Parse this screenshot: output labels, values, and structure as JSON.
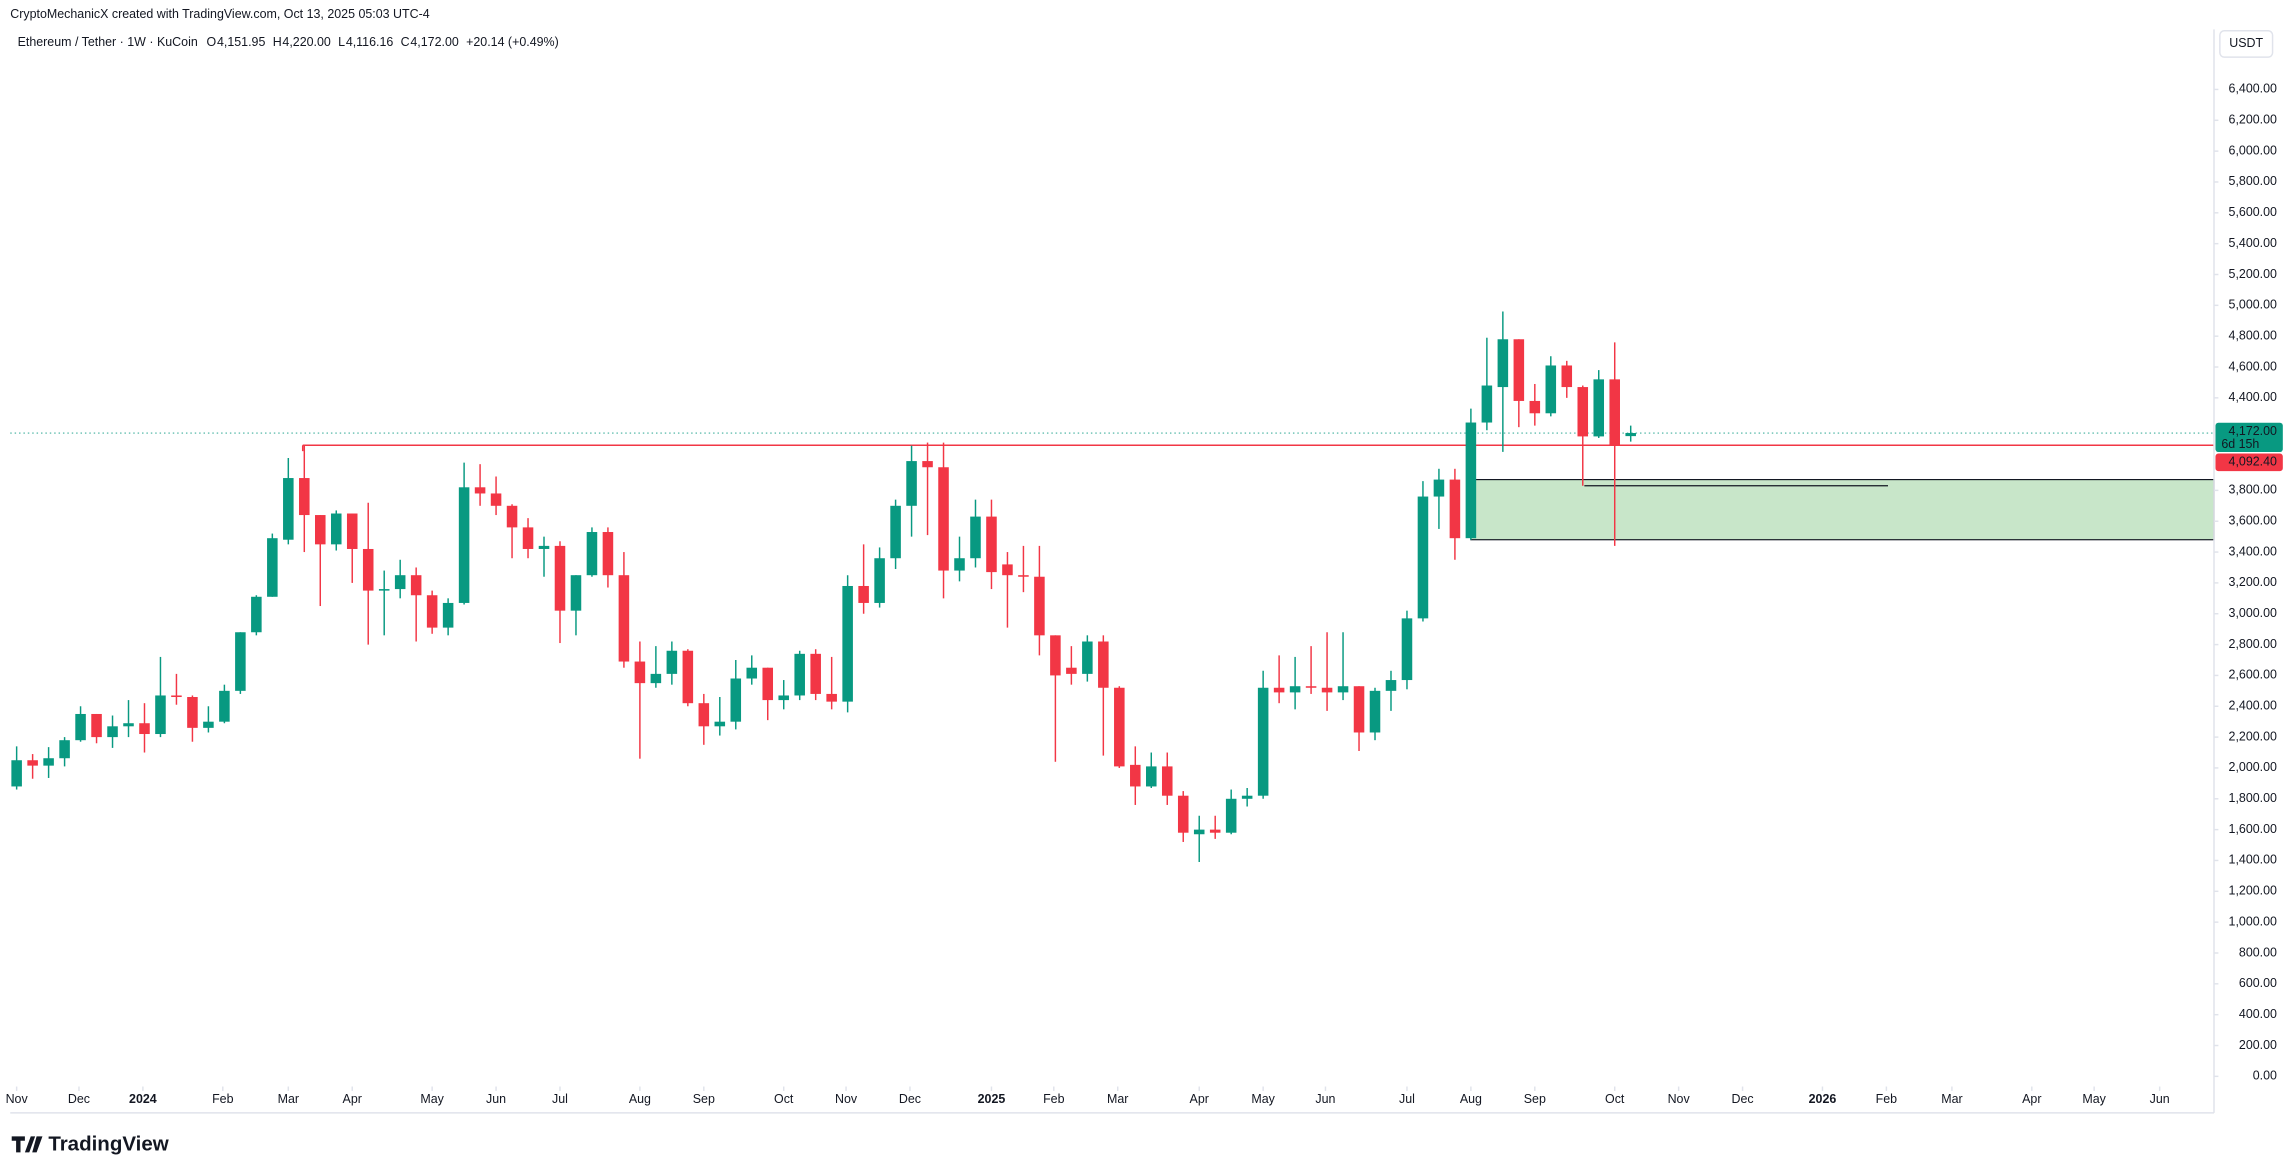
{
  "chart_data": {
    "type": "candlestick",
    "attribution": "CryptoMechanicX created with TradingView.com, Oct 13, 2025 05:03 UTC-4",
    "title": "Ethereum / Tether · 1W · KuCoin",
    "ohlc_legend": [
      {
        "name": "O",
        "value": 4151.95,
        "label": "4,151.95"
      },
      {
        "name": "H",
        "value": 4220,
        "label": "4,220.00"
      },
      {
        "name": "L",
        "value": 4116.16,
        "label": "4,116.16"
      },
      {
        "name": "C",
        "value": 4172,
        "label": "4,172.00"
      }
    ],
    "change": {
      "value": 20.14,
      "percent": 0.49,
      "label": "+20.14 (+0.49%)"
    },
    "currency": "USDT",
    "brand": "TradingView",
    "up_color": "#089981",
    "down_color": "#f23645",
    "open": [
      1880,
      2050,
      2015,
      2063,
      2180,
      2350,
      2200,
      2270,
      2290,
      2220,
      2470,
      2460,
      2260,
      2300,
      2500,
      2880,
      3110,
      3480,
      3880,
      3640,
      3450,
      3650,
      3420,
      3150,
      3160,
      3250,
      3120,
      2910,
      3070,
      3820,
      3780,
      3700,
      3560,
      3420,
      3440,
      3020,
      3250,
      3530,
      3250,
      2690,
      2550,
      2610,
      2760,
      2420,
      2270,
      2300,
      2580,
      2650,
      2440,
      2470,
      2740,
      2480,
      2430,
      3180,
      3070,
      3360,
      3700,
      3990,
      3950,
      3280,
      3360,
      3630,
      3320,
      3250,
      3240,
      2860,
      2650,
      2610,
      2820,
      2520,
      2020,
      1880,
      2010,
      1820,
      1570,
      1600,
      1580,
      1800,
      1820,
      2520,
      2490,
      2530,
      2520,
      2490,
      2530,
      2230,
      2500,
      2570,
      2970,
      3760,
      3870,
      3490,
      4240,
      4470,
      4780,
      4380,
      4300,
      4610,
      4470,
      4150,
      4520,
      4151.95
    ],
    "high": [
      2140,
      2090,
      2135,
      2200,
      2400,
      2350,
      2340,
      2440,
      2420,
      2720,
      2610,
      2470,
      2400,
      2540,
      2880,
      3120,
      3520,
      4010,
      4090,
      3640,
      3670,
      3650,
      3720,
      3280,
      3350,
      3300,
      3150,
      3100,
      3980,
      3970,
      3890,
      3710,
      3620,
      3500,
      3470,
      3250,
      3560,
      3560,
      3400,
      2820,
      2790,
      2820,
      2770,
      2480,
      2460,
      2700,
      2730,
      2650,
      2570,
      2760,
      2770,
      2720,
      3250,
      3450,
      3430,
      3740,
      4090,
      4110,
      4110,
      3500,
      3740,
      3740,
      3400,
      3440,
      3440,
      2860,
      2790,
      2860,
      2860,
      2530,
      2140,
      2100,
      2100,
      1850,
      1690,
      1690,
      1860,
      1870,
      2630,
      2730,
      2720,
      2790,
      2880,
      2880,
      2530,
      2520,
      2630,
      3020,
      3860,
      3940,
      3940,
      4330,
      4790,
      4960,
      4780,
      4490,
      4670,
      4640,
      4480,
      4580,
      4760,
      4220
    ],
    "low": [
      1860,
      1930,
      1935,
      2010,
      2170,
      2160,
      2130,
      2200,
      2100,
      2200,
      2410,
      2170,
      2230,
      2290,
      2480,
      2860,
      3110,
      3450,
      3400,
      3050,
      3410,
      3200,
      2800,
      2860,
      3100,
      2820,
      2870,
      2860,
      3060,
      3700,
      3640,
      3360,
      3360,
      3240,
      2810,
      2860,
      3240,
      3170,
      2650,
      2060,
      2520,
      2540,
      2400,
      2150,
      2210,
      2250,
      2540,
      2310,
      2380,
      2440,
      2440,
      2380,
      2360,
      3000,
      3040,
      3290,
      3500,
      3510,
      3100,
      3210,
      3300,
      3160,
      2910,
      3140,
      2730,
      2040,
      2540,
      2560,
      2080,
      2000,
      1760,
      1870,
      1760,
      1520,
      1390,
      1540,
      1570,
      1750,
      1800,
      2420,
      2380,
      2480,
      2370,
      2440,
      2110,
      2180,
      2370,
      2510,
      2950,
      3550,
      3350,
      3480,
      4190,
      4050,
      4210,
      4220,
      4280,
      4400,
      3830,
      4140,
      3440,
      4116.16
    ],
    "close": [
      2050,
      2015,
      2063,
      2180,
      2350,
      2200,
      2270,
      2290,
      2220,
      2470,
      2460,
      2260,
      2300,
      2500,
      2880,
      3110,
      3490,
      3880,
      3640,
      3450,
      3650,
      3420,
      3150,
      3160,
      3250,
      3120,
      2910,
      3070,
      3820,
      3780,
      3700,
      3560,
      3420,
      3440,
      3020,
      3250,
      3530,
      3250,
      2690,
      2550,
      2610,
      2760,
      2420,
      2270,
      2300,
      2580,
      2650,
      2440,
      2470,
      2740,
      2480,
      2430,
      3180,
      3070,
      3360,
      3700,
      3990,
      3950,
      3280,
      3360,
      3630,
      3270,
      3250,
      3240,
      2860,
      2600,
      2610,
      2820,
      2520,
      2010,
      1880,
      2010,
      1820,
      1580,
      1600,
      1580,
      1800,
      1820,
      2520,
      2490,
      2530,
      2520,
      2490,
      2530,
      2230,
      2500,
      2570,
      2970,
      3760,
      3870,
      3490,
      4240,
      4480,
      4780,
      4380,
      4300,
      4610,
      4470,
      4150,
      4520,
      4090,
      4172
    ],
    "xlim": [
      -0.4,
      137.5
    ],
    "xticks": [
      {
        "value": 0,
        "label": "Nov"
      },
      {
        "value": 3.9,
        "label": "Dec"
      },
      {
        "value": 7.9,
        "label": "2024"
      },
      {
        "value": 12.9,
        "label": "Feb"
      },
      {
        "value": 17,
        "label": "Mar"
      },
      {
        "value": 21,
        "label": "Apr"
      },
      {
        "value": 26,
        "label": "May"
      },
      {
        "value": 30,
        "label": "Jun"
      },
      {
        "value": 34,
        "label": "Jul"
      },
      {
        "value": 39,
        "label": "Aug"
      },
      {
        "value": 43,
        "label": "Sep"
      },
      {
        "value": 48,
        "label": "Oct"
      },
      {
        "value": 51.9,
        "label": "Nov"
      },
      {
        "value": 55.9,
        "label": "Dec"
      },
      {
        "value": 61,
        "label": "2025"
      },
      {
        "value": 64.9,
        "label": "Feb"
      },
      {
        "value": 68.9,
        "label": "Mar"
      },
      {
        "value": 74,
        "label": "Apr"
      },
      {
        "value": 78,
        "label": "May"
      },
      {
        "value": 81.9,
        "label": "Jun"
      },
      {
        "value": 87,
        "label": "Jul"
      },
      {
        "value": 91,
        "label": "Aug"
      },
      {
        "value": 95,
        "label": "Sep"
      },
      {
        "value": 100,
        "label": "Oct"
      },
      {
        "value": 104,
        "label": "Nov"
      },
      {
        "value": 108,
        "label": "Dec"
      },
      {
        "value": 113,
        "label": "2026"
      },
      {
        "value": 117,
        "label": "Feb"
      },
      {
        "value": 121.1,
        "label": "Mar"
      },
      {
        "value": 126.1,
        "label": "Apr"
      },
      {
        "value": 130,
        "label": "May"
      },
      {
        "value": 134.1,
        "label": "Jun"
      }
    ],
    "ylim": [
      -66,
      6790
    ],
    "yticks": [
      {
        "value": 0,
        "label": "0.00"
      },
      {
        "value": 200,
        "label": "200.00"
      },
      {
        "value": 400,
        "label": "400.00"
      },
      {
        "value": 600,
        "label": "600.00"
      },
      {
        "value": 800,
        "label": "800.00"
      },
      {
        "value": 1000,
        "label": "1,000.00"
      },
      {
        "value": 1200,
        "label": "1,200.00"
      },
      {
        "value": 1400,
        "label": "1,400.00"
      },
      {
        "value": 1600,
        "label": "1,600.00"
      },
      {
        "value": 1800,
        "label": "1,800.00"
      },
      {
        "value": 2000,
        "label": "2,000.00"
      },
      {
        "value": 2200,
        "label": "2,200.00"
      },
      {
        "value": 2400,
        "label": "2,400.00"
      },
      {
        "value": 2600,
        "label": "2,600.00"
      },
      {
        "value": 2800,
        "label": "2,800.00"
      },
      {
        "value": 3000,
        "label": "3,000.00"
      },
      {
        "value": 3200,
        "label": "3,200.00"
      },
      {
        "value": 3400,
        "label": "3,400.00"
      },
      {
        "value": 3600,
        "label": "3,600.00"
      },
      {
        "value": 3800,
        "label": "3,800.00"
      },
      {
        "value": 4400,
        "label": "4,400.00"
      },
      {
        "value": 4600,
        "label": "4,600.00"
      },
      {
        "value": 4800,
        "label": "4,800.00"
      },
      {
        "value": 5000,
        "label": "5,000.00"
      },
      {
        "value": 5200,
        "label": "5,200.00"
      },
      {
        "value": 5400,
        "label": "5,400.00"
      },
      {
        "value": 5600,
        "label": "5,600.00"
      },
      {
        "value": 5800,
        "label": "5,800.00"
      },
      {
        "value": 6000,
        "label": "6,000.00"
      },
      {
        "value": 6200,
        "label": "6,200.00"
      },
      {
        "value": 6400,
        "label": "6,400.00"
      }
    ],
    "last_price": {
      "value": 4172,
      "label": "4,172.00",
      "countdown": "6d 15h"
    },
    "level_line": {
      "value": 4092.4,
      "label": "4,092.40",
      "start": 17.9,
      "color": "#f23645"
    },
    "zone": {
      "low": 3480,
      "high": 3870,
      "start": 91,
      "color": "#c8e6c9"
    },
    "support_line": {
      "value": 3830,
      "start": 98.1,
      "end": 117.1
    }
  }
}
